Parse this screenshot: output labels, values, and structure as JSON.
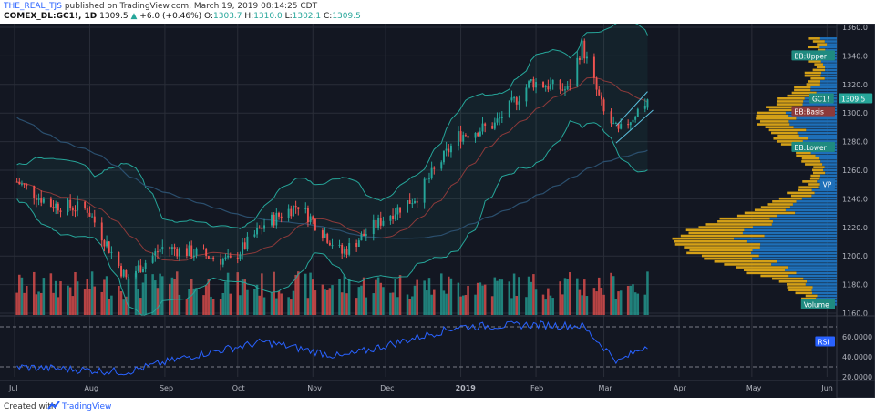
{
  "header": {
    "username": "THE_REAL_TJS",
    "published_text": "published on TradingView.com, March 19, 2019 08:14:25 CDT",
    "symbol": "COMEX_DL:GC1!, 1D",
    "last": "1309.5",
    "change": "+6.0 (+0.46%)",
    "o_label": "O:",
    "o": "1303.7",
    "h_label": "H:",
    "h": "1310.0",
    "l_label": "L:",
    "l": "1302.1",
    "c_label": "C:",
    "c": "1309.5"
  },
  "footer": {
    "created": "Created with",
    "brand": "TradingView"
  },
  "colors": {
    "background": "#131722",
    "grid": "#2a2e39",
    "up": "#26a69a",
    "down": "#ef5350",
    "bb": "#26a69a",
    "basis": "#8d3a3a",
    "ma": "#2b4f6e",
    "rsi": "#2962ff",
    "vp_up": "#1e6fb8",
    "vp_down": "#d4a017",
    "axis_text": "#b2b5be"
  },
  "chart_data": [
    {
      "type": "candlestick",
      "title": "COMEX_DL:GC1!, 1D",
      "ylim": [
        1160,
        1360
      ],
      "y_ticks": [
        "1360.0",
        "1340.0",
        "1320.0",
        "1300.0",
        "1280.0",
        "1260.0",
        "1240.0",
        "1220.0",
        "1200.0",
        "1180.0",
        "1160.0"
      ],
      "x_ticks": [
        "Jul",
        "Aug",
        "Sep",
        "Oct",
        "Nov",
        "Dec",
        "2019",
        "Feb",
        "Mar",
        "Apr",
        "May",
        "Jun"
      ],
      "key_closes": [
        [
          "2018-07-02",
          1252
        ],
        [
          "2018-07-16",
          1236
        ],
        [
          "2018-07-31",
          1233
        ],
        [
          "2018-08-16",
          1184
        ],
        [
          "2018-08-31",
          1206
        ],
        [
          "2018-09-14",
          1202
        ],
        [
          "2018-09-28",
          1196
        ],
        [
          "2018-10-12",
          1222
        ],
        [
          "2018-10-26",
          1236
        ],
        [
          "2018-11-13",
          1202
        ],
        [
          "2018-11-30",
          1226
        ],
        [
          "2018-12-14",
          1242
        ],
        [
          "2018-12-31",
          1284
        ],
        [
          "2019-01-15",
          1292
        ],
        [
          "2019-01-30",
          1322
        ],
        [
          "2019-02-14",
          1316
        ],
        [
          "2019-02-20",
          1347
        ],
        [
          "2019-03-01",
          1300
        ],
        [
          "2019-03-07",
          1286
        ],
        [
          "2019-03-19",
          1309.5
        ]
      ],
      "labels": {
        "bb_upper": "BB:Upper",
        "bb_basis": "BB:Basis",
        "bb_lower": "BB:Lower",
        "last_symbol": "GC1!",
        "last_price": "1309.5",
        "vp": "VP",
        "volume": "Volume"
      },
      "indicators": [
        "Bollinger Bands",
        "Moving Average",
        "Volume",
        "Volume Profile"
      ]
    },
    {
      "type": "line",
      "title": "RSI",
      "ylim": [
        20,
        80
      ],
      "y_ticks": [
        "60.0000",
        "40.0000",
        "20.0000"
      ],
      "bands": [
        70,
        30
      ],
      "key_values": [
        [
          "2018-07-02",
          30
        ],
        [
          "2018-08-16",
          25
        ],
        [
          "2018-09-14",
          42
        ],
        [
          "2018-10-12",
          55
        ],
        [
          "2018-11-13",
          40
        ],
        [
          "2018-12-31",
          70
        ],
        [
          "2019-01-30",
          72
        ],
        [
          "2019-02-20",
          71
        ],
        [
          "2019-03-07",
          35
        ],
        [
          "2019-03-19",
          52
        ]
      ],
      "label": "RSI"
    }
  ]
}
